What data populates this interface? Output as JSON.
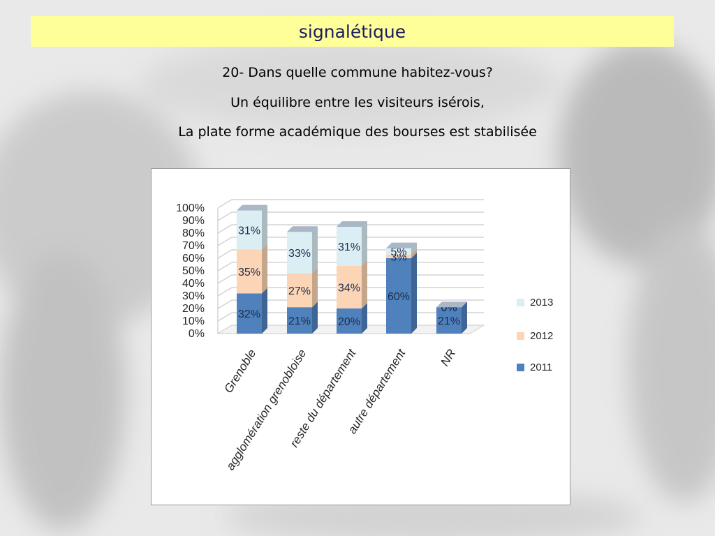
{
  "slide": {
    "title": "signalétique",
    "lines": [
      "20- Dans quelle commune habitez-vous?",
      "Un équilibre entre les visiteurs isérois,",
      "La plate forme académique des bourses est stabilisée"
    ]
  },
  "colors": {
    "title_bar": "#ffff99",
    "series_2011": "#4f81bd",
    "series_2012": "#fbd5b5",
    "series_2013": "#dbeef3"
  },
  "chart_data": {
    "type": "bar",
    "stacked": true,
    "categories": [
      "Grenoble",
      "agglomération grenobloise",
      "reste du département",
      "autre département",
      "NR"
    ],
    "series": [
      {
        "name": "2011",
        "values": [
          32,
          21,
          20,
          60,
          21
        ]
      },
      {
        "name": "2012",
        "values": [
          35,
          27,
          34,
          3,
          0
        ]
      },
      {
        "name": "2013",
        "values": [
          31,
          33,
          31,
          5,
          0
        ]
      }
    ],
    "data_labels": [
      [
        "32%",
        "21%",
        "20%",
        "60%",
        "21%"
      ],
      [
        "35%",
        "27%",
        "34%",
        "3%",
        "0%"
      ],
      [
        "31%",
        "33%",
        "31%",
        "5%",
        "0%"
      ]
    ],
    "y_ticks": [
      "0%",
      "10%",
      "20%",
      "30%",
      "40%",
      "50%",
      "60%",
      "70%",
      "80%",
      "90%",
      "100%"
    ],
    "ylim": [
      0,
      100
    ],
    "grid": true,
    "legend_position": "right",
    "legend_order": [
      "2013",
      "2012",
      "2011"
    ]
  }
}
